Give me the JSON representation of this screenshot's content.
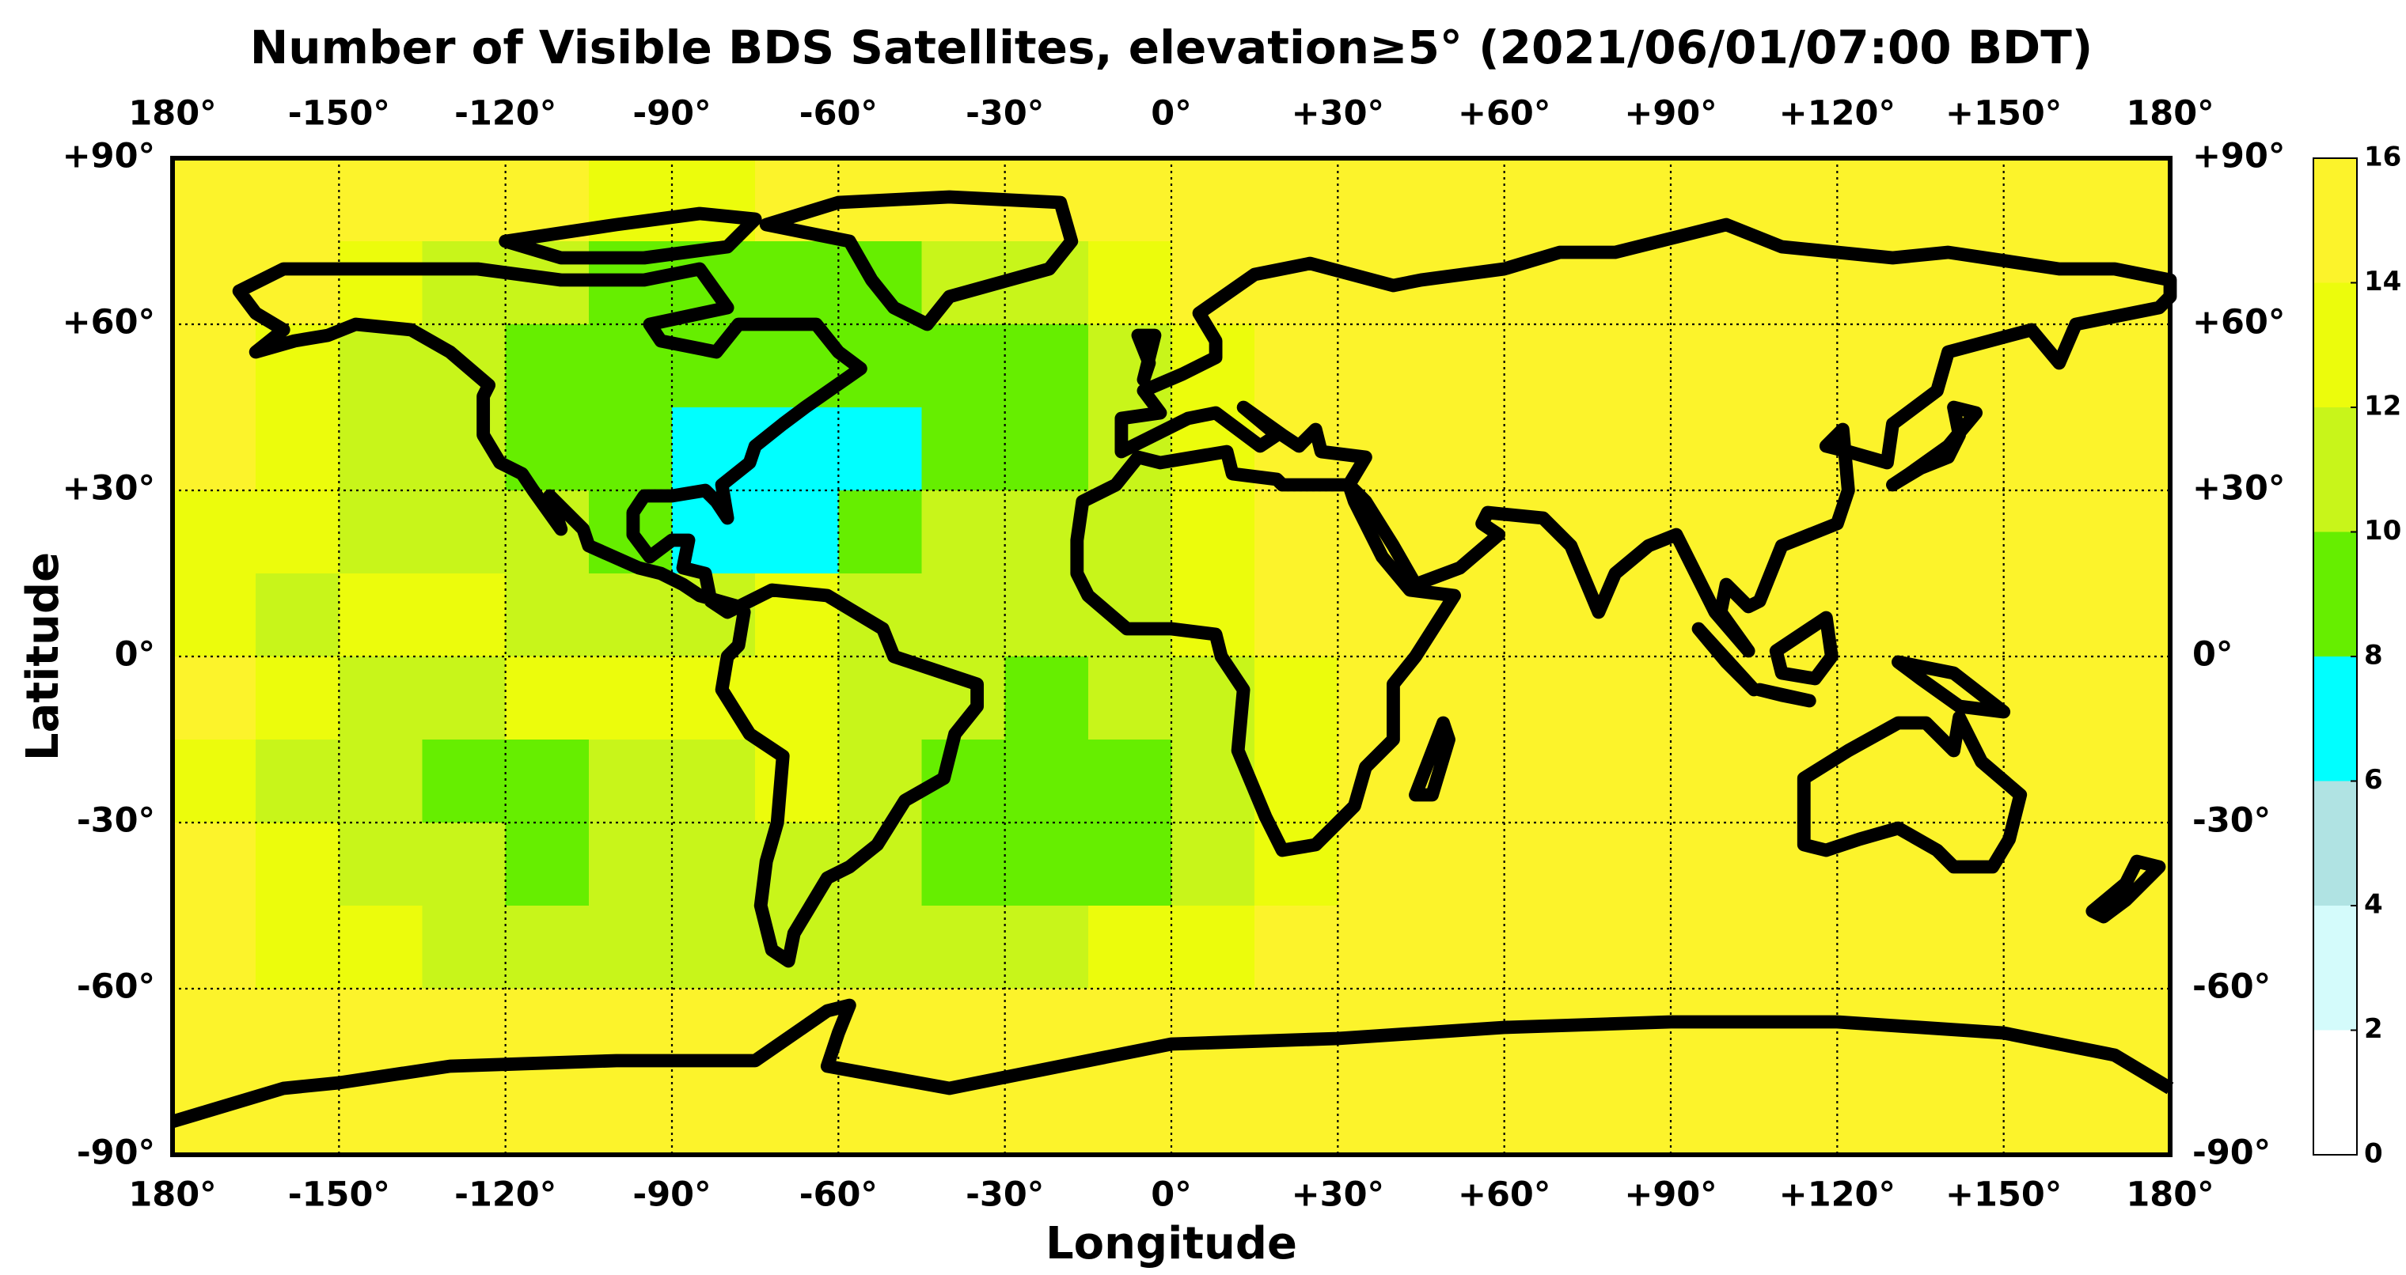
{
  "chart_data": {
    "type": "heatmap",
    "title": "Number of Visible BDS Satellites, elevation≥5° (2021/06/01/07:00 BDT)",
    "x_label": "Longitude",
    "y_label": "Latitude",
    "xlim": [
      -180,
      180
    ],
    "ylim": [
      -90,
      90
    ],
    "xticks": [
      {
        "value": -180,
        "label": "180°"
      },
      {
        "value": -150,
        "label": "-150°"
      },
      {
        "value": -120,
        "label": "-120°"
      },
      {
        "value": -90,
        "label": "-90°"
      },
      {
        "value": -60,
        "label": "-60°"
      },
      {
        "value": -30,
        "label": "-30°"
      },
      {
        "value": 0,
        "label": "0°"
      },
      {
        "value": 30,
        "label": "+30°"
      },
      {
        "value": 60,
        "label": "+60°"
      },
      {
        "value": 90,
        "label": "+90°"
      },
      {
        "value": 120,
        "label": "+120°"
      },
      {
        "value": 150,
        "label": "+150°"
      },
      {
        "value": 180,
        "label": "180°"
      }
    ],
    "yticks": [
      {
        "value": 90,
        "label": "+90°"
      },
      {
        "value": 60,
        "label": "+60°"
      },
      {
        "value": 30,
        "label": "+30°"
      },
      {
        "value": 0,
        "label": "0°"
      },
      {
        "value": -30,
        "label": "-30°"
      },
      {
        "value": -60,
        "label": "-60°"
      },
      {
        "value": -90,
        "label": "-90°"
      }
    ],
    "grid": true,
    "x": [
      -172.5,
      -157.5,
      -142.5,
      -127.5,
      -112.5,
      -97.5,
      -82.5,
      -67.5,
      -52.5,
      -37.5,
      -22.5,
      -7.5,
      7.5,
      22.5,
      37.5,
      52.5,
      67.5,
      82.5,
      97.5,
      112.5,
      127.5,
      142.5,
      157.5,
      172.5
    ],
    "y": [
      82.5,
      67.5,
      52.5,
      37.5,
      22.5,
      7.5,
      -7.5,
      -22.5,
      -37.5,
      -52.5,
      -67.5,
      -82.5
    ],
    "z": [
      [
        15,
        15,
        15,
        15,
        15,
        13,
        13,
        15,
        15,
        15,
        15,
        15,
        15,
        15,
        15,
        15,
        15,
        15,
        15,
        15,
        15,
        15,
        15,
        15
      ],
      [
        15,
        15,
        13,
        11,
        11,
        9,
        9,
        9,
        9,
        11,
        11,
        13,
        15,
        15,
        15,
        15,
        15,
        15,
        15,
        15,
        15,
        15,
        15,
        15
      ],
      [
        15,
        13,
        11,
        11,
        9,
        9,
        9,
        9,
        9,
        9,
        9,
        11,
        13,
        15,
        15,
        15,
        15,
        15,
        15,
        15,
        15,
        15,
        15,
        15
      ],
      [
        15,
        13,
        11,
        11,
        9,
        9,
        7,
        7,
        7,
        9,
        9,
        11,
        13,
        15,
        15,
        15,
        15,
        15,
        15,
        15,
        15,
        15,
        15,
        15
      ],
      [
        13,
        13,
        11,
        11,
        11,
        9,
        7,
        7,
        9,
        11,
        11,
        11,
        13,
        15,
        15,
        15,
        15,
        15,
        15,
        15,
        15,
        15,
        15,
        15
      ],
      [
        13,
        11,
        13,
        13,
        11,
        11,
        11,
        13,
        11,
        11,
        11,
        11,
        13,
        15,
        15,
        15,
        15,
        15,
        15,
        15,
        15,
        15,
        15,
        15
      ],
      [
        15,
        13,
        11,
        11,
        13,
        13,
        13,
        13,
        11,
        11,
        9,
        11,
        11,
        13,
        15,
        15,
        15,
        15,
        15,
        15,
        15,
        15,
        15,
        15
      ],
      [
        13,
        11,
        11,
        9,
        9,
        11,
        11,
        13,
        11,
        9,
        9,
        9,
        11,
        13,
        15,
        15,
        15,
        15,
        15,
        15,
        15,
        15,
        15,
        15
      ],
      [
        15,
        13,
        11,
        11,
        9,
        11,
        11,
        11,
        11,
        9,
        9,
        9,
        11,
        13,
        15,
        15,
        15,
        15,
        15,
        15,
        15,
        15,
        15,
        15
      ],
      [
        15,
        13,
        13,
        11,
        11,
        11,
        11,
        11,
        11,
        11,
        11,
        13,
        13,
        15,
        15,
        15,
        15,
        15,
        15,
        15,
        15,
        15,
        15,
        15
      ],
      [
        15,
        15,
        15,
        15,
        15,
        15,
        15,
        15,
        15,
        15,
        15,
        15,
        15,
        15,
        15,
        15,
        15,
        15,
        15,
        15,
        15,
        15,
        15,
        15
      ],
      [
        15,
        15,
        15,
        15,
        15,
        15,
        15,
        15,
        15,
        15,
        15,
        15,
        15,
        15,
        15,
        15,
        15,
        15,
        15,
        15,
        15,
        15,
        15,
        15
      ]
    ],
    "colorbar": {
      "levels": [
        0,
        2,
        4,
        6,
        8,
        10,
        12,
        14,
        16
      ],
      "colors": [
        "#ffffff",
        "#d4fbfb",
        "#b0e3e3",
        "#00ffff",
        "#66ee00",
        "#c8f51a",
        "#ecfc0c",
        "#fcf32b"
      ],
      "ticks": [
        0,
        2,
        4,
        6,
        8,
        10,
        12,
        14,
        16
      ]
    }
  }
}
